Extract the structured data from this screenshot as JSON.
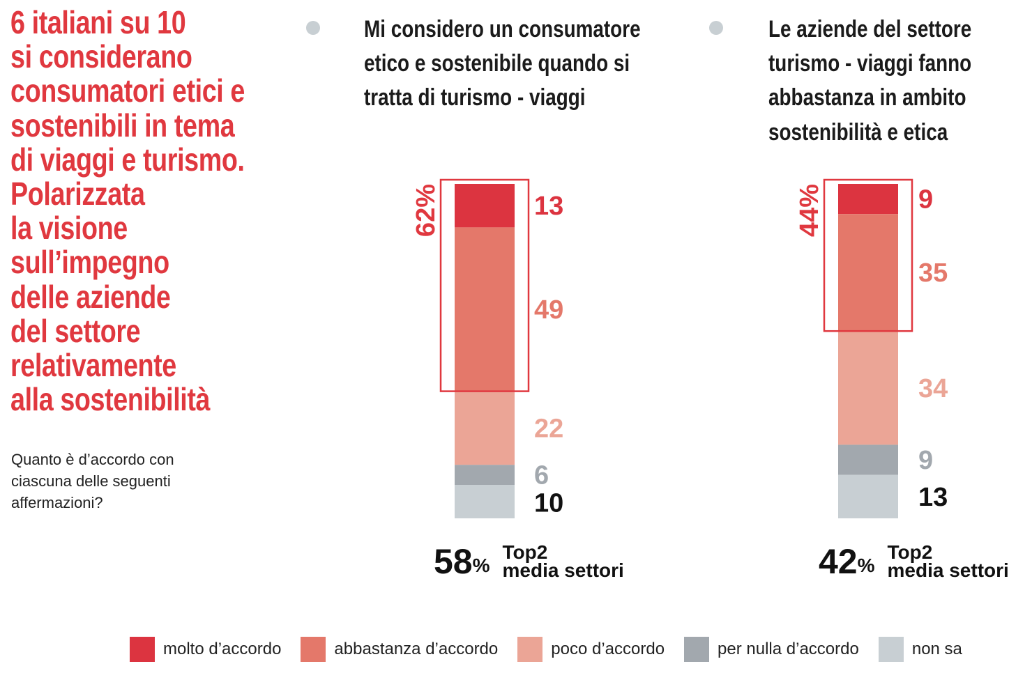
{
  "headline": [
    "6 italiani su 10",
    "si considerano",
    "consumatori etici e",
    "sostenibili in tema",
    "di viaggi e turismo.",
    "Polarizzata",
    "la visione",
    "sull’impegno",
    "delle aziende",
    "del settore",
    "relativamente",
    "alla sostenibilità"
  ],
  "question": "Quanto è d’accordo con ciascuna delle seguenti affermazioni?",
  "colors": {
    "accent": "#e0383f",
    "molto": "#dc3440",
    "abbastanza": "#e4786a",
    "poco": "#eba596",
    "per_nulla": "#a2a8ae",
    "non_sa": "#c8cfd3"
  },
  "chart_data": {
    "type": "bar",
    "stacked": true,
    "categories": [
      "Mi considero un consumatore etico e sostenibile quando si tratta di turismo - viaggi",
      "Le aziende del settore turismo - viaggi fanno abbastanza in ambito sostenibilità e etica"
    ],
    "category_lines": [
      [
        "Mi considero un consumatore",
        "etico e sostenibile quando si",
        "tratta di turismo - viaggi"
      ],
      [
        "Le aziende del settore",
        "turismo - viaggi fanno",
        "abbastanza in ambito",
        "sostenibilità e etica"
      ]
    ],
    "series": [
      {
        "name": "molto d’accordo",
        "values": [
          13,
          9
        ]
      },
      {
        "name": "abbastanza d’accordo",
        "values": [
          49,
          35
        ]
      },
      {
        "name": "poco d’accordo",
        "values": [
          22,
          34
        ]
      },
      {
        "name": "per nulla d’accordo",
        "values": [
          6,
          9
        ]
      },
      {
        "name": "non sa",
        "values": [
          10,
          13
        ]
      }
    ],
    "top2_highlight": [
      "62%",
      "44%"
    ],
    "top2_media_settori": [
      {
        "value": "58",
        "unit": "%"
      },
      {
        "value": "42",
        "unit": "%"
      }
    ],
    "top2_label": [
      "Top2",
      "media settori"
    ],
    "ylim": [
      0,
      100
    ],
    "legend": "bottom"
  }
}
